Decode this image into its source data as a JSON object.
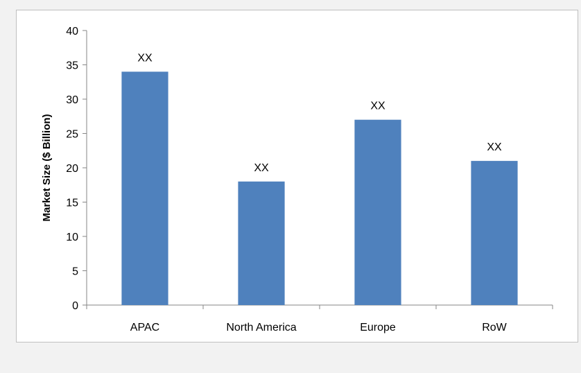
{
  "chart_data": {
    "type": "bar",
    "categories": [
      "APAC",
      "North America",
      "Europe",
      "RoW"
    ],
    "values": [
      34,
      18,
      27,
      21
    ],
    "data_labels": [
      "XX",
      "XX",
      "XX",
      "XX"
    ],
    "title": "",
    "xlabel": "",
    "ylabel": "Market Size ($ Billion)",
    "ylim": [
      0,
      40
    ],
    "yticks": [
      0,
      5,
      10,
      15,
      20,
      25,
      30,
      35,
      40
    ],
    "grid": false,
    "legend": "none",
    "bar_color": "#4f81bd"
  }
}
